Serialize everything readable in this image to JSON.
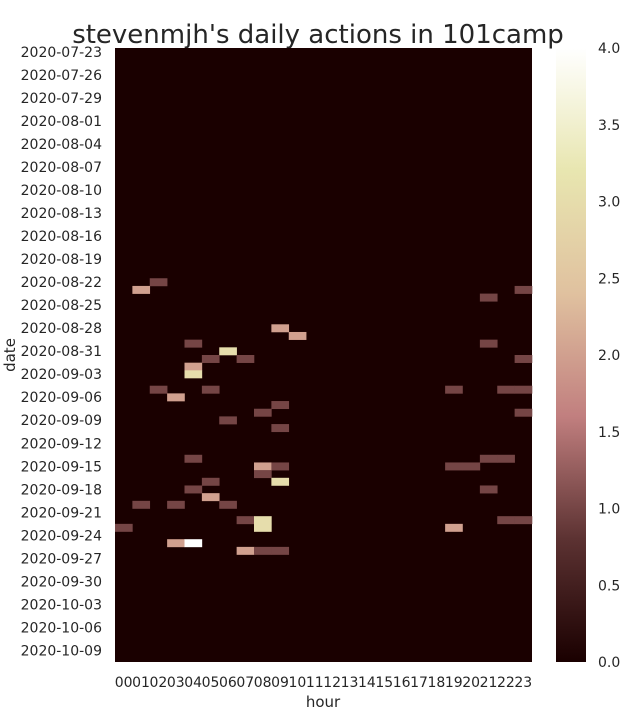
{
  "chart_data": {
    "type": "heatmap",
    "title": "stevenmjh's daily actions in 101camp",
    "xlabel": "hour",
    "ylabel": "date",
    "x": [
      "00",
      "01",
      "02",
      "03",
      "04",
      "05",
      "06",
      "07",
      "08",
      "09",
      "10",
      "11",
      "12",
      "13",
      "14",
      "15",
      "16",
      "17",
      "18",
      "19",
      "20",
      "21",
      "22",
      "23"
    ],
    "y_start_date": "2020-07-23",
    "y_tick_labels": [
      "2020-07-23",
      "2020-07-26",
      "2020-07-29",
      "2020-08-01",
      "2020-08-04",
      "2020-08-07",
      "2020-08-10",
      "2020-08-13",
      "2020-08-16",
      "2020-08-19",
      "2020-08-22",
      "2020-08-25",
      "2020-08-28",
      "2020-08-31",
      "2020-09-03",
      "2020-09-06",
      "2020-09-09",
      "2020-09-12",
      "2020-09-15",
      "2020-09-18",
      "2020-09-21",
      "2020-09-24",
      "2020-09-27",
      "2020-09-30",
      "2020-10-03",
      "2020-10-06",
      "2020-10-09"
    ],
    "colorbar": {
      "min": 0,
      "max": 4,
      "ticks": [
        "0.0",
        "0.5",
        "1.0",
        "1.5",
        "2.0",
        "2.5",
        "3.0",
        "3.5",
        "4.0"
      ]
    },
    "colormap": [
      "#1a0000",
      "#5c3232",
      "#c17f7f",
      "#e0c19f",
      "#e8e6b0",
      "#ffffff"
    ],
    "cells": [
      {
        "date": "2020-08-22",
        "hour": "02",
        "value": 1
      },
      {
        "date": "2020-08-23",
        "hour": "01",
        "value": 2
      },
      {
        "date": "2020-08-23",
        "hour": "23",
        "value": 1
      },
      {
        "date": "2020-08-24",
        "hour": "21",
        "value": 1
      },
      {
        "date": "2020-08-28",
        "hour": "09",
        "value": 2
      },
      {
        "date": "2020-08-29",
        "hour": "10",
        "value": 2
      },
      {
        "date": "2020-08-30",
        "hour": "04",
        "value": 1
      },
      {
        "date": "2020-08-30",
        "hour": "21",
        "value": 1
      },
      {
        "date": "2020-08-31",
        "hour": "06",
        "value": 3
      },
      {
        "date": "2020-09-01",
        "hour": "05",
        "value": 1
      },
      {
        "date": "2020-09-01",
        "hour": "07",
        "value": 1
      },
      {
        "date": "2020-09-01",
        "hour": "23",
        "value": 1
      },
      {
        "date": "2020-09-02",
        "hour": "04",
        "value": 2
      },
      {
        "date": "2020-09-03",
        "hour": "04",
        "value": 3
      },
      {
        "date": "2020-09-05",
        "hour": "02",
        "value": 1
      },
      {
        "date": "2020-09-05",
        "hour": "05",
        "value": 1
      },
      {
        "date": "2020-09-05",
        "hour": "19",
        "value": 1
      },
      {
        "date": "2020-09-05",
        "hour": "22",
        "value": 1
      },
      {
        "date": "2020-09-05",
        "hour": "23",
        "value": 1
      },
      {
        "date": "2020-09-06",
        "hour": "03",
        "value": 2
      },
      {
        "date": "2020-09-07",
        "hour": "09",
        "value": 1
      },
      {
        "date": "2020-09-08",
        "hour": "08",
        "value": 1
      },
      {
        "date": "2020-09-08",
        "hour": "23",
        "value": 1
      },
      {
        "date": "2020-09-09",
        "hour": "06",
        "value": 1
      },
      {
        "date": "2020-09-10",
        "hour": "09",
        "value": 1
      },
      {
        "date": "2020-09-14",
        "hour": "04",
        "value": 1
      },
      {
        "date": "2020-09-14",
        "hour": "21",
        "value": 1
      },
      {
        "date": "2020-09-14",
        "hour": "22",
        "value": 1
      },
      {
        "date": "2020-09-15",
        "hour": "08",
        "value": 2
      },
      {
        "date": "2020-09-15",
        "hour": "09",
        "value": 1
      },
      {
        "date": "2020-09-15",
        "hour": "19",
        "value": 1
      },
      {
        "date": "2020-09-15",
        "hour": "20",
        "value": 1
      },
      {
        "date": "2020-09-16",
        "hour": "08",
        "value": 1
      },
      {
        "date": "2020-09-17",
        "hour": "05",
        "value": 1
      },
      {
        "date": "2020-09-17",
        "hour": "09",
        "value": 3
      },
      {
        "date": "2020-09-18",
        "hour": "04",
        "value": 1
      },
      {
        "date": "2020-09-18",
        "hour": "21",
        "value": 1
      },
      {
        "date": "2020-09-19",
        "hour": "05",
        "value": 2
      },
      {
        "date": "2020-09-20",
        "hour": "01",
        "value": 1
      },
      {
        "date": "2020-09-20",
        "hour": "03",
        "value": 1
      },
      {
        "date": "2020-09-20",
        "hour": "06",
        "value": 1
      },
      {
        "date": "2020-09-22",
        "hour": "07",
        "value": 1
      },
      {
        "date": "2020-09-22",
        "hour": "08",
        "value": 3
      },
      {
        "date": "2020-09-22",
        "hour": "22",
        "value": 1
      },
      {
        "date": "2020-09-22",
        "hour": "23",
        "value": 1
      },
      {
        "date": "2020-09-23",
        "hour": "00",
        "value": 1
      },
      {
        "date": "2020-09-23",
        "hour": "08",
        "value": 3
      },
      {
        "date": "2020-09-23",
        "hour": "19",
        "value": 2
      },
      {
        "date": "2020-09-25",
        "hour": "03",
        "value": 2
      },
      {
        "date": "2020-09-25",
        "hour": "04",
        "value": 4
      },
      {
        "date": "2020-09-26",
        "hour": "07",
        "value": 2
      },
      {
        "date": "2020-09-26",
        "hour": "08",
        "value": 1
      },
      {
        "date": "2020-09-26",
        "hour": "09",
        "value": 1
      }
    ]
  }
}
